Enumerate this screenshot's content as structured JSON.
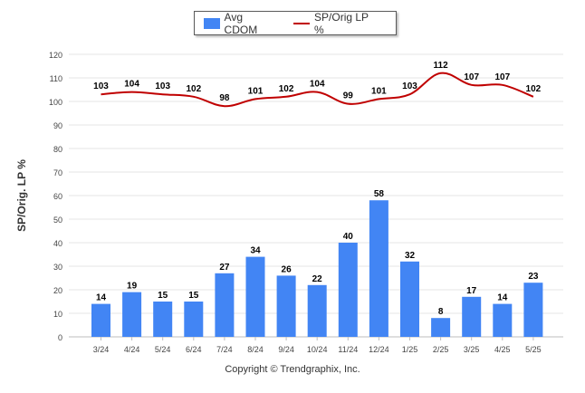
{
  "legend": {
    "bar_label": "Avg CDOM",
    "line_label": "SP/Orig LP %"
  },
  "credit": "Copyright © Trendgraphix, Inc.",
  "colors": {
    "bar": "#4285f4",
    "line": "#c00000",
    "grid": "#e6e6e6"
  },
  "chart_data": {
    "type": "bar",
    "ylabel": "SP/Orig. LP %",
    "xlabel": "",
    "ylim": [
      0,
      120
    ],
    "yticks": [
      0,
      10,
      20,
      30,
      40,
      50,
      60,
      70,
      80,
      90,
      100,
      110,
      120
    ],
    "categories": [
      "3/24",
      "4/24",
      "5/24",
      "6/24",
      "7/24",
      "8/24",
      "9/24",
      "10/24",
      "11/24",
      "12/24",
      "1/25",
      "2/25",
      "3/25",
      "4/25",
      "5/25"
    ],
    "series": [
      {
        "name": "Avg CDOM",
        "type": "bar",
        "values": [
          14,
          19,
          15,
          15,
          27,
          34,
          26,
          22,
          40,
          58,
          32,
          8,
          17,
          14,
          23
        ]
      },
      {
        "name": "SP/Orig LP %",
        "type": "line",
        "values": [
          103,
          104,
          103,
          102,
          98,
          101,
          102,
          104,
          99,
          101,
          103,
          112,
          107,
          107,
          102
        ]
      }
    ],
    "grid": true,
    "legend_position": "top-center"
  }
}
